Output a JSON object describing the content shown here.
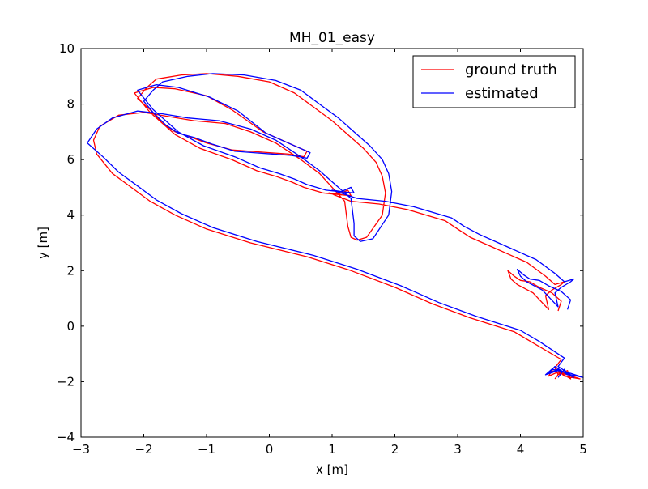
{
  "chart_data": {
    "type": "line",
    "title": "MH_01_easy",
    "xlabel": "x [m]",
    "ylabel": "y [m]",
    "xlim": [
      -3,
      5
    ],
    "ylim": [
      -4,
      10
    ],
    "xticks": [
      -3,
      -2,
      -1,
      0,
      1,
      2,
      3,
      4,
      5
    ],
    "yticks": [
      -4,
      -2,
      0,
      2,
      4,
      6,
      8,
      10
    ],
    "xtick_labels": [
      "−3",
      "−2",
      "−1",
      "0",
      "1",
      "2",
      "3",
      "4",
      "5"
    ],
    "ytick_labels": [
      "−4",
      "−2",
      "0",
      "2",
      "4",
      "6",
      "8",
      "10"
    ],
    "grid": false,
    "legend_position": "top-right",
    "series": [
      {
        "name": "ground truth",
        "color": "#ff0000",
        "x": [
          4.55,
          4.65,
          4.7,
          4.55,
          4.6,
          4.75,
          4.8,
          4.65,
          4.5,
          4.45,
          4.6,
          4.75,
          4.95,
          4.7,
          4.55,
          4.65,
          4.2,
          3.9,
          3.2,
          2.6,
          2.0,
          1.3,
          0.6,
          -0.3,
          -1.0,
          -1.5,
          -1.9,
          -2.2,
          -2.5,
          -2.75,
          -2.8,
          -2.7,
          -2.4,
          -2.0,
          -1.6,
          -1.2,
          -0.7,
          -0.3,
          0.1,
          0.5,
          0.8,
          1.0,
          1.2,
          1.25,
          1.3,
          1.4,
          1.55,
          1.8,
          1.85,
          1.8,
          1.7,
          1.5,
          1.25,
          1.0,
          0.7,
          0.4,
          0.0,
          -0.5,
          -1.0,
          -1.4,
          -1.8,
          -1.95,
          -2.1,
          -1.9,
          -1.7,
          -1.5,
          -1.3,
          -1.0,
          -0.6,
          -0.3,
          0.0,
          0.3,
          0.55,
          0.6,
          0.3,
          -0.1,
          -0.6,
          -1.0,
          -1.5,
          -1.85,
          -2.15,
          -1.9,
          -1.5,
          -1.1,
          -0.6,
          -0.2,
          0.1,
          0.35,
          0.55,
          0.7,
          0.85,
          1.05,
          1.3,
          1.25,
          1.1,
          0.95,
          1.3,
          1.75,
          2.2,
          2.5,
          2.8,
          3.0,
          3.2,
          3.5,
          3.8,
          4.1,
          4.4,
          4.55,
          4.7,
          4.65,
          4.5,
          4.4,
          4.45,
          4.2,
          3.95,
          3.85,
          3.8,
          3.9,
          4.0,
          4.15,
          4.3,
          4.5,
          4.65,
          4.6
        ],
        "y": [
          -1.9,
          -1.6,
          -1.8,
          -1.5,
          -1.75,
          -1.6,
          -1.9,
          -1.7,
          -1.6,
          -1.8,
          -1.65,
          -1.75,
          -1.9,
          -1.8,
          -1.5,
          -1.2,
          -0.6,
          -0.2,
          0.3,
          0.8,
          1.4,
          2.0,
          2.5,
          3.0,
          3.5,
          4.0,
          4.5,
          5.0,
          5.5,
          6.2,
          6.7,
          7.2,
          7.6,
          7.7,
          7.55,
          7.4,
          7.3,
          7.0,
          6.6,
          6.0,
          5.5,
          5.0,
          4.5,
          3.6,
          3.2,
          3.1,
          3.2,
          4.0,
          4.8,
          5.4,
          5.9,
          6.4,
          6.9,
          7.4,
          7.9,
          8.4,
          8.8,
          9.0,
          9.1,
          9.05,
          8.9,
          8.6,
          8.2,
          7.8,
          7.3,
          7.0,
          6.85,
          6.6,
          6.35,
          6.3,
          6.25,
          6.2,
          6.1,
          6.3,
          6.6,
          7.0,
          7.8,
          8.3,
          8.55,
          8.6,
          8.4,
          7.7,
          6.9,
          6.4,
          6.0,
          5.6,
          5.4,
          5.2,
          5.0,
          4.9,
          4.8,
          4.75,
          4.7,
          4.9,
          4.75,
          4.8,
          4.5,
          4.4,
          4.2,
          4.0,
          3.8,
          3.5,
          3.2,
          2.9,
          2.6,
          2.3,
          1.8,
          1.5,
          1.6,
          1.5,
          1.3,
          1.1,
          0.6,
          1.2,
          1.5,
          1.7,
          2.0,
          1.8,
          1.65,
          1.6,
          1.4,
          1.2,
          0.9,
          0.55
        ]
      },
      {
        "name": "estimated",
        "color": "#0000ff",
        "x": [
          4.6,
          4.7,
          4.75,
          4.55,
          4.45,
          4.6,
          4.85,
          4.7,
          4.5,
          4.4,
          4.6,
          4.8,
          5.0,
          4.8,
          4.6,
          4.7,
          4.3,
          4.0,
          3.3,
          2.7,
          2.1,
          1.4,
          0.7,
          -0.2,
          -0.9,
          -1.4,
          -1.8,
          -2.1,
          -2.4,
          -2.65,
          -2.9,
          -2.75,
          -2.5,
          -2.1,
          -1.7,
          -1.3,
          -0.8,
          -0.3,
          0.1,
          0.5,
          0.8,
          1.05,
          1.3,
          1.35,
          1.35,
          1.45,
          1.65,
          1.9,
          1.95,
          1.9,
          1.8,
          1.6,
          1.35,
          1.1,
          0.8,
          0.5,
          0.1,
          -0.4,
          -0.9,
          -1.3,
          -1.7,
          -1.85,
          -2.0,
          -1.85,
          -1.65,
          -1.45,
          -1.2,
          -0.9,
          -0.55,
          -0.25,
          0.05,
          0.35,
          0.6,
          0.65,
          0.35,
          -0.05,
          -0.5,
          -0.95,
          -1.45,
          -1.8,
          -2.1,
          -1.85,
          -1.45,
          -1.05,
          -0.55,
          -0.15,
          0.15,
          0.4,
          0.6,
          0.75,
          0.9,
          1.1,
          1.35,
          1.3,
          1.15,
          1.0,
          1.4,
          1.85,
          2.3,
          2.6,
          2.9,
          3.1,
          3.35,
          3.65,
          3.95,
          4.25,
          4.55,
          4.7,
          4.85,
          4.8,
          4.65,
          4.55,
          4.6,
          4.35,
          4.1,
          4.0,
          3.95,
          4.05,
          4.15,
          4.3,
          4.45,
          4.65,
          4.8,
          4.75
        ],
        "y": [
          -1.85,
          -1.55,
          -1.75,
          -1.45,
          -1.7,
          -1.55,
          -1.85,
          -1.65,
          -1.55,
          -1.75,
          -1.6,
          -1.7,
          -1.85,
          -1.75,
          -1.45,
          -1.15,
          -0.55,
          -0.15,
          0.35,
          0.85,
          1.45,
          2.05,
          2.55,
          3.05,
          3.55,
          4.05,
          4.55,
          5.05,
          5.55,
          6.1,
          6.6,
          7.1,
          7.5,
          7.75,
          7.65,
          7.5,
          7.4,
          7.1,
          6.7,
          6.1,
          5.6,
          5.1,
          4.6,
          3.7,
          3.25,
          3.05,
          3.15,
          4.0,
          4.85,
          5.5,
          6.0,
          6.5,
          7.0,
          7.5,
          8.0,
          8.5,
          8.85,
          9.05,
          9.1,
          9.0,
          8.8,
          8.5,
          8.1,
          7.7,
          7.25,
          6.95,
          6.8,
          6.55,
          6.3,
          6.25,
          6.2,
          6.15,
          6.05,
          6.25,
          6.55,
          6.95,
          7.75,
          8.25,
          8.6,
          8.7,
          8.5,
          7.8,
          7.0,
          6.5,
          6.1,
          5.7,
          5.5,
          5.3,
          5.1,
          5.0,
          4.9,
          4.85,
          4.8,
          5.0,
          4.85,
          4.9,
          4.6,
          4.5,
          4.3,
          4.1,
          3.9,
          3.6,
          3.3,
          3.0,
          2.7,
          2.4,
          1.9,
          1.6,
          1.7,
          1.6,
          1.4,
          1.2,
          0.7,
          1.3,
          1.6,
          1.8,
          2.05,
          1.85,
          1.7,
          1.65,
          1.45,
          1.25,
          0.95,
          0.6
        ]
      }
    ]
  }
}
